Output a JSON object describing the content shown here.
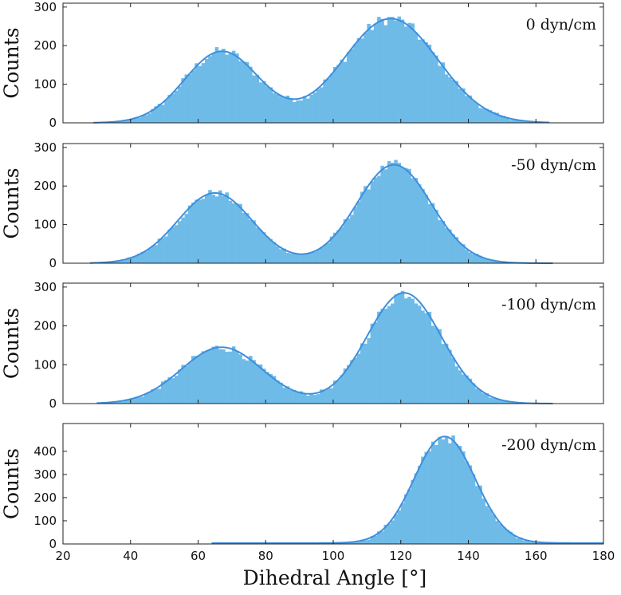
{
  "figure": {
    "xlabel": "Dihedral Angle [°]",
    "ylabel": "Counts"
  },
  "chart_data": [
    {
      "type": "bar",
      "label": "0 dyn/cm",
      "xlim": [
        20,
        180
      ],
      "ylim": [
        0,
        310
      ],
      "yticks": [
        0,
        100,
        200,
        300
      ],
      "xticks": [
        20,
        40,
        60,
        80,
        100,
        120,
        140,
        160,
        180
      ],
      "xtick_labels_shown": false,
      "bin_width": 1,
      "hist_range": [
        29,
        164
      ],
      "hist_noise": 12,
      "components": [
        {
          "mean": 67,
          "sd": 11,
          "amp": 185
        },
        {
          "mean": 117,
          "sd": 14,
          "amp": 270
        }
      ],
      "fit_color": "#3d8fdc",
      "bar_color": "#6fbbe8"
    },
    {
      "type": "bar",
      "label": "-50 dyn/cm",
      "xlim": [
        20,
        180
      ],
      "ylim": [
        0,
        310
      ],
      "yticks": [
        0,
        100,
        200,
        300
      ],
      "xticks": [
        20,
        40,
        60,
        80,
        100,
        120,
        140,
        160,
        180
      ],
      "xtick_labels_shown": false,
      "bin_width": 1,
      "hist_range": [
        28,
        165
      ],
      "hist_noise": 10,
      "components": [
        {
          "mean": 65,
          "sd": 11,
          "amp": 182
        },
        {
          "mean": 118,
          "sd": 11,
          "amp": 255
        }
      ],
      "fit_color": "#3d8fdc",
      "bar_color": "#6fbbe8"
    },
    {
      "type": "bar",
      "label": "-100 dyn/cm",
      "xlim": [
        20,
        180
      ],
      "ylim": [
        0,
        310
      ],
      "yticks": [
        0,
        100,
        200,
        300
      ],
      "xticks": [
        20,
        40,
        60,
        80,
        100,
        120,
        140,
        160,
        180
      ],
      "xtick_labels_shown": false,
      "bin_width": 1,
      "hist_range": [
        30,
        165
      ],
      "hist_noise": 12,
      "components": [
        {
          "mean": 67,
          "sd": 12,
          "amp": 145
        },
        {
          "mean": 121,
          "sd": 11,
          "amp": 285
        }
      ],
      "fit_color": "#3d8fdc",
      "bar_color": "#6fbbe8"
    },
    {
      "type": "bar",
      "label": "-200 dyn/cm",
      "xlim": [
        20,
        180
      ],
      "ylim": [
        0,
        520
      ],
      "yticks": [
        0,
        100,
        200,
        300,
        400
      ],
      "xticks": [
        20,
        40,
        60,
        80,
        100,
        120,
        140,
        160,
        180
      ],
      "xtick_labels_shown": true,
      "bin_width": 1,
      "hist_range": [
        64,
        180
      ],
      "hist_noise": 14,
      "components": [
        {
          "mean": 133,
          "sd": 9,
          "amp": 460
        }
      ],
      "baseline": 4,
      "fit_color": "#3d8fdc",
      "bar_color": "#6fbbe8"
    }
  ]
}
